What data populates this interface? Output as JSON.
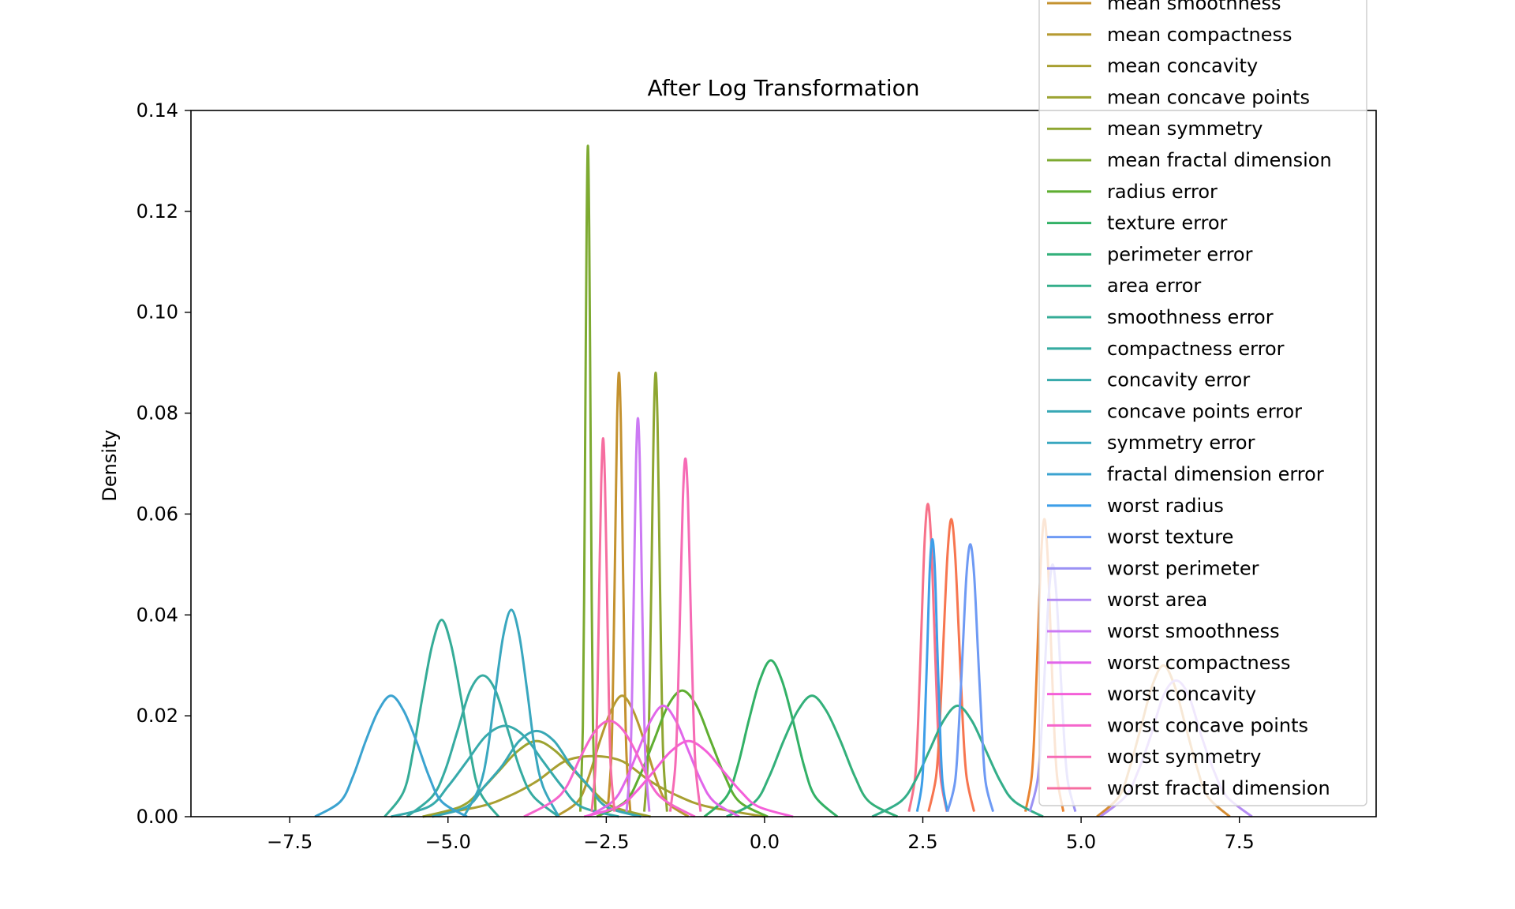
{
  "chart_data": {
    "type": "line",
    "title": "After Log Transformation",
    "y_label": "Density",
    "xlim": [
      -9.06,
      9.66
    ],
    "ylim": [
      0,
      0.14
    ],
    "xticks": [
      {
        "value": -7.5,
        "label": "−7.5"
      },
      {
        "value": -5,
        "label": "−5.0"
      },
      {
        "value": -2.5,
        "label": "−2.5"
      },
      {
        "value": 0,
        "label": "0.0"
      },
      {
        "value": 2.5,
        "label": "2.5"
      },
      {
        "value": 5,
        "label": "5.0"
      },
      {
        "value": 7.5,
        "label": "7.5"
      }
    ],
    "yticks": [
      {
        "value": 0,
        "label": "0.00"
      },
      {
        "value": 0.02,
        "label": "0.02"
      },
      {
        "value": 0.04,
        "label": "0.04"
      },
      {
        "value": 0.06,
        "label": "0.06"
      },
      {
        "value": 0.08,
        "label": "0.08"
      },
      {
        "value": 0.1,
        "label": "0.10"
      },
      {
        "value": 0.12,
        "label": "0.12"
      },
      {
        "value": 0.14,
        "label": "0.14"
      }
    ],
    "legend": "upper right",
    "series": [
      {
        "color": "#f77189",
        "x": [
          2.28,
          2.38,
          2.43,
          2.48,
          2.53,
          2.58,
          2.63,
          2.68,
          2.73,
          2.78,
          2.88
        ],
        "values": [
          0.001,
          0.008,
          0.02,
          0.038,
          0.055,
          0.062,
          0.055,
          0.038,
          0.02,
          0.008,
          0.001
        ]
      },
      {
        "color": "#f7754f",
        "x": [
          2.59,
          2.71,
          2.77,
          2.83,
          2.89,
          2.95,
          3.01,
          3.07,
          3.13,
          3.19,
          3.31
        ],
        "values": [
          0.001,
          0.008,
          0.019,
          0.036,
          0.052,
          0.059,
          0.052,
          0.036,
          0.019,
          0.008,
          0.001
        ]
      },
      {
        "color": "#e98432",
        "x": [
          4.12,
          4.22,
          4.27,
          4.32,
          4.37,
          4.42,
          4.47,
          4.52,
          4.57,
          4.62,
          4.72
        ],
        "values": [
          0.001,
          0.008,
          0.019,
          0.036,
          0.052,
          0.059,
          0.052,
          0.036,
          0.019,
          0.008,
          0.001
        ]
      },
      {
        "color": "#d58c32",
        "x": [
          5.25,
          5.6,
          5.775,
          5.95,
          6.125,
          6.3,
          6.475,
          6.65,
          6.825,
          7.0,
          7.35
        ],
        "values": [
          0,
          0.004,
          0.01,
          0.018,
          0.026,
          0.03,
          0.026,
          0.018,
          0.01,
          0.004,
          0
        ]
      },
      {
        "name": "mean smoothness",
        "color": "#c4922f",
        "x": [
          -2.48,
          -2.42,
          -2.39,
          -2.36,
          -2.33,
          -2.3,
          -2.27,
          -2.24,
          -2.21,
          -2.18,
          -2.12
        ],
        "values": [
          0.001,
          0.012,
          0.029,
          0.053,
          0.078,
          0.088,
          0.078,
          0.053,
          0.029,
          0.012,
          0.001
        ]
      },
      {
        "name": "mean compactness",
        "color": "#b69a31",
        "x": [
          -3.3,
          -2.95,
          -2.775,
          -2.6,
          -2.425,
          -2.25,
          -2.075,
          -1.9,
          -1.725,
          -1.55,
          -1.2
        ],
        "values": [
          0,
          0.003,
          0.008,
          0.015,
          0.021,
          0.024,
          0.021,
          0.015,
          0.008,
          0.003,
          0
        ]
      },
      {
        "name": "mean concavity",
        "color": "#a89f31",
        "x": [
          -5.4,
          -4.5,
          -4.05,
          -3.6,
          -3.15,
          -2.7,
          -2.25,
          -1.8,
          -1.35,
          -0.9,
          0
        ],
        "values": [
          0,
          0.002,
          0.004,
          0.007,
          0.011,
          0.012,
          0.011,
          0.007,
          0.004,
          0.002,
          0
        ]
      },
      {
        "name": "mean concave points",
        "color": "#9ca331",
        "x": [
          -5.4,
          -4.8,
          -4.5,
          -4.2,
          -3.9,
          -3.6,
          -3.3,
          -3.0,
          -2.7,
          -2.4,
          -1.8
        ],
        "values": [
          0,
          0.002,
          0.005,
          0.009,
          0.013,
          0.015,
          0.013,
          0.009,
          0.005,
          0.002,
          0
        ]
      },
      {
        "name": "mean symmetry",
        "color": "#8ea631",
        "x": [
          -1.9,
          -1.84,
          -1.81,
          -1.78,
          -1.75,
          -1.72,
          -1.69,
          -1.66,
          -1.63,
          -1.6,
          -1.54
        ],
        "values": [
          0.001,
          0.012,
          0.029,
          0.053,
          0.078,
          0.088,
          0.078,
          0.053,
          0.029,
          0.012,
          0.001
        ]
      },
      {
        "name": "mean fractal dimension",
        "color": "#7daa31",
        "x": [
          -2.91,
          -2.87,
          -2.85,
          -2.83,
          -2.81,
          -2.79,
          -2.77,
          -2.75,
          -2.73,
          -2.71,
          -2.67
        ],
        "values": [
          0.001,
          0.018,
          0.043,
          0.081,
          0.117,
          0.133,
          0.117,
          0.081,
          0.043,
          0.018,
          0.001
        ]
      },
      {
        "name": "radius error",
        "color": "#5fae31",
        "x": [
          -2.65,
          -2.2,
          -1.975,
          -1.75,
          -1.525,
          -1.3,
          -1.075,
          -0.85,
          -0.625,
          -0.4,
          0.05
        ],
        "values": [
          0,
          0.003,
          0.008,
          0.015,
          0.022,
          0.025,
          0.022,
          0.015,
          0.008,
          0.003,
          0
        ]
      },
      {
        "name": "texture error",
        "color": "#32b166",
        "x": [
          -0.95,
          -0.6,
          -0.425,
          -0.25,
          -0.075,
          0.1,
          0.275,
          0.45,
          0.625,
          0.8,
          1.15
        ],
        "values": [
          0,
          0.004,
          0.01,
          0.019,
          0.027,
          0.031,
          0.027,
          0.019,
          0.01,
          0.004,
          0
        ]
      },
      {
        "name": "perimeter error",
        "color": "#33b07a",
        "x": [
          -0.6,
          -0.15,
          0.075,
          0.3,
          0.525,
          0.75,
          0.975,
          1.2,
          1.425,
          1.65,
          2.1
        ],
        "values": [
          0,
          0.003,
          0.008,
          0.015,
          0.021,
          0.024,
          0.021,
          0.015,
          0.008,
          0.003,
          0
        ]
      },
      {
        "name": "area error",
        "color": "#34ae8a",
        "x": [
          1.7,
          2.15,
          2.375,
          2.6,
          2.825,
          3.05,
          3.275,
          3.5,
          3.725,
          3.95,
          4.4
        ],
        "values": [
          0,
          0.003,
          0.007,
          0.013,
          0.019,
          0.022,
          0.019,
          0.013,
          0.007,
          0.003,
          0
        ]
      },
      {
        "name": "smoothness error",
        "color": "#35ac97",
        "x": [
          -6,
          -5.7,
          -5.55,
          -5.4,
          -5.25,
          -5.1,
          -4.95,
          -4.8,
          -4.65,
          -4.5,
          -4.2
        ],
        "values": [
          0,
          0.005,
          0.013,
          0.024,
          0.034,
          0.039,
          0.034,
          0.024,
          0.013,
          0.005,
          0
        ]
      },
      {
        "name": "compactness error",
        "color": "#36aba1",
        "x": [
          -5.65,
          -5.25,
          -5.05,
          -4.85,
          -4.65,
          -4.45,
          -4.25,
          -4.05,
          -3.85,
          -3.65,
          -3.25
        ],
        "values": [
          0,
          0.004,
          0.009,
          0.017,
          0.025,
          0.028,
          0.025,
          0.017,
          0.009,
          0.004,
          0
        ]
      },
      {
        "name": "concavity error",
        "color": "#37aaab",
        "x": [
          -5.9,
          -5.3,
          -5,
          -4.7,
          -4.4,
          -4.1,
          -3.8,
          -3.5,
          -3.2,
          -2.9,
          -2.3
        ],
        "values": [
          0,
          0.002,
          0.006,
          0.011,
          0.016,
          0.018,
          0.016,
          0.011,
          0.006,
          0.002,
          0
        ]
      },
      {
        "name": "concave points error",
        "color": "#38a8b5",
        "x": [
          -5.25,
          -4.7,
          -4.425,
          -4.15,
          -3.875,
          -3.6,
          -3.325,
          -3.05,
          -2.775,
          -2.5,
          -1.95
        ],
        "values": [
          0,
          0.002,
          0.006,
          0.01,
          0.015,
          0.017,
          0.015,
          0.01,
          0.006,
          0.002,
          0
        ]
      },
      {
        "name": "symmetry error",
        "color": "#39a7bf",
        "x": [
          -4.75,
          -4.5,
          -4.375,
          -4.25,
          -4.125,
          -4,
          -3.875,
          -3.75,
          -3.625,
          -3.5,
          -3.25
        ],
        "values": [
          0,
          0.006,
          0.013,
          0.025,
          0.036,
          0.041,
          0.036,
          0.025,
          0.013,
          0.006,
          0
        ]
      },
      {
        "name": "fractal dimension error",
        "color": "#3ba3d0",
        "x": [
          -7.1,
          -6.7,
          -6.5,
          -6.3,
          -6.1,
          -5.9,
          -5.7,
          -5.5,
          -5.3,
          -5.1,
          -4.7
        ],
        "values": [
          0,
          0.003,
          0.008,
          0.015,
          0.021,
          0.024,
          0.021,
          0.015,
          0.008,
          0.003,
          0
        ]
      },
      {
        "name": "worst radius",
        "color": "#3d9ee8",
        "x": [
          2.41,
          2.49,
          2.53,
          2.57,
          2.61,
          2.65,
          2.69,
          2.73,
          2.77,
          2.81,
          2.89
        ],
        "values": [
          0.001,
          0.007,
          0.018,
          0.033,
          0.049,
          0.055,
          0.049,
          0.033,
          0.018,
          0.007,
          0.001
        ]
      },
      {
        "name": "worst texture",
        "color": "#6e9af4",
        "x": [
          2.89,
          3.01,
          3.07,
          3.13,
          3.19,
          3.25,
          3.31,
          3.37,
          3.43,
          3.49,
          3.61
        ],
        "values": [
          0.001,
          0.007,
          0.018,
          0.033,
          0.048,
          0.054,
          0.048,
          0.033,
          0.018,
          0.007,
          0.001
        ]
      },
      {
        "name": "worst perimeter",
        "color": "#9b92f4",
        "x": [
          4.19,
          4.31,
          4.37,
          4.43,
          4.49,
          4.55,
          4.61,
          4.67,
          4.73,
          4.79,
          4.91
        ],
        "values": [
          0.001,
          0.007,
          0.016,
          0.03,
          0.044,
          0.05,
          0.044,
          0.03,
          0.016,
          0.007,
          0.001
        ]
      },
      {
        "name": "worst area",
        "color": "#b58cf4",
        "x": [
          5.3,
          5.7,
          5.9,
          6.1,
          6.3,
          6.5,
          6.7,
          6.9,
          7.1,
          7.3,
          7.7
        ],
        "values": [
          0,
          0.004,
          0.009,
          0.016,
          0.024,
          0.027,
          0.024,
          0.016,
          0.009,
          0.004,
          0
        ]
      },
      {
        "name": "worst smoothness",
        "color": "#cc7af4",
        "x": [
          -2.18,
          -2.12,
          -2.09,
          -2.06,
          -2.03,
          -2,
          -1.97,
          -1.94,
          -1.91,
          -1.88,
          -1.82
        ],
        "values": [
          0.001,
          0.011,
          0.026,
          0.048,
          0.07,
          0.079,
          0.07,
          0.048,
          0.026,
          0.011,
          0.001
        ]
      },
      {
        "name": "worst compactness",
        "color": "#e166ea",
        "x": [
          -2.8,
          -2.4,
          -2.2,
          -2,
          -1.8,
          -1.6,
          -1.4,
          -1.2,
          -1,
          -0.8,
          -0.4
        ],
        "values": [
          0,
          0.003,
          0.007,
          0.013,
          0.019,
          0.022,
          0.019,
          0.013,
          0.007,
          0.003,
          0
        ]
      },
      {
        "name": "worst concavity",
        "color": "#f45fd8",
        "x": [
          -2.85,
          -2.3,
          -2.025,
          -1.75,
          -1.475,
          -1.2,
          -0.925,
          -0.65,
          -0.375,
          -0.1,
          0.45
        ],
        "values": [
          0,
          0.002,
          0.005,
          0.009,
          0.013,
          0.015,
          0.013,
          0.009,
          0.005,
          0.002,
          0
        ]
      },
      {
        "name": "worst concave points",
        "color": "#f565cc",
        "x": [
          -3.8,
          -3.35,
          -3.125,
          -2.9,
          -2.675,
          -2.45,
          -2.225,
          -2,
          -1.775,
          -1.55,
          -1.1
        ],
        "values": [
          0,
          0.003,
          0.006,
          0.012,
          0.017,
          0.019,
          0.017,
          0.012,
          0.006,
          0.003,
          0
        ]
      },
      {
        "name": "worst symmetry",
        "color": "#f66bb5",
        "x": [
          -1.49,
          -1.41,
          -1.37,
          -1.33,
          -1.29,
          -1.25,
          -1.21,
          -1.17,
          -1.13,
          -1.09,
          -1.01
        ],
        "values": [
          0.001,
          0.01,
          0.023,
          0.043,
          0.063,
          0.071,
          0.063,
          0.043,
          0.023,
          0.01,
          0.001
        ]
      },
      {
        "name": "worst fractal dimension",
        "color": "#f66ea0",
        "x": [
          -2.73,
          -2.67,
          -2.64,
          -2.61,
          -2.58,
          -2.55,
          -2.52,
          -2.49,
          -2.46,
          -2.43,
          -2.37
        ],
        "values": [
          0.001,
          0.01,
          0.024,
          0.046,
          0.066,
          0.075,
          0.066,
          0.046,
          0.024,
          0.01,
          0.001
        ]
      }
    ]
  }
}
